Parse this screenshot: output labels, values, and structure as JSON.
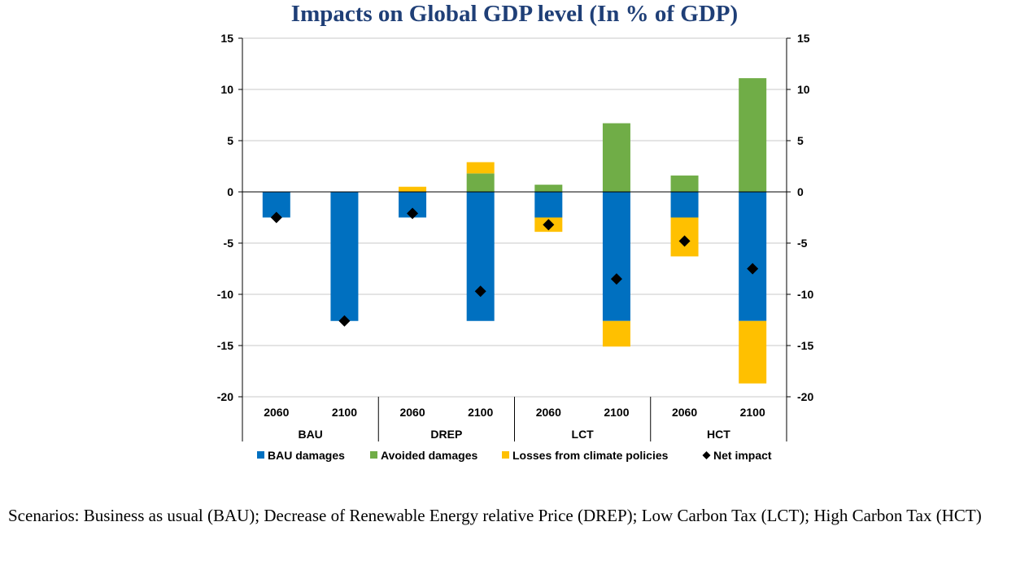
{
  "chart_data": {
    "type": "bar",
    "stacked": true,
    "title": "Impacts on Global GDP level (In % of GDP)",
    "groups": [
      "BAU",
      "DREP",
      "LCT",
      "HCT"
    ],
    "categories": [
      "2060",
      "2100",
      "2060",
      "2100",
      "2060",
      "2100",
      "2060",
      "2100"
    ],
    "ylim": [
      -20,
      15
    ],
    "yticks": [
      15,
      10,
      5,
      0,
      -5,
      -10,
      -15,
      -20
    ],
    "grid": true,
    "legend_position": "bottom",
    "series": [
      {
        "name": "BAU damages",
        "kind": "bar",
        "color": "#0070c0",
        "values": [
          -2.5,
          -12.6,
          -2.5,
          -12.6,
          -2.5,
          -12.6,
          -2.5,
          -12.6
        ]
      },
      {
        "name": "Avoided damages",
        "kind": "bar",
        "color": "#70ad47",
        "values": [
          0,
          0,
          0,
          1.8,
          0.7,
          6.7,
          1.6,
          11.1
        ]
      },
      {
        "name": "Losses from climate policies",
        "kind": "bar",
        "color": "#ffc000",
        "values": [
          0,
          0,
          0.5,
          1.1,
          -1.4,
          -2.5,
          -3.8,
          -6.1
        ]
      },
      {
        "name": "Net impact",
        "kind": "marker",
        "color": "#000000",
        "values": [
          -2.5,
          -12.6,
          -2.1,
          -9.7,
          -3.2,
          -8.5,
          -4.8,
          -7.5
        ]
      }
    ]
  },
  "footnote": "Scenarios: Business as usual (BAU); Decrease of Renewable Energy relative Price (DREP); Low Carbon Tax (LCT); High Carbon Tax (HCT)"
}
